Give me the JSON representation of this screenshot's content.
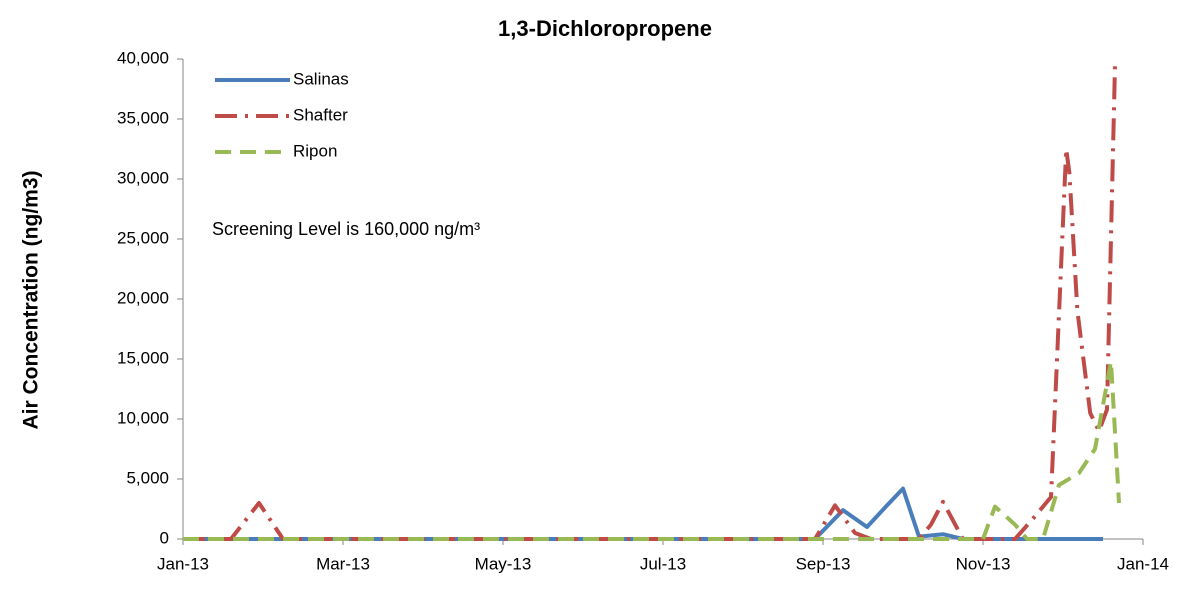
{
  "chart_data": {
    "type": "line",
    "title": "1,3-Dichloropropene",
    "y_label": "Air Concentration (ng/m3)",
    "annotation": "Screening Level is 160,000 ng/m³",
    "xlim": [
      0,
      12
    ],
    "xticks": [
      {
        "value": 0,
        "label": "Jan-13"
      },
      {
        "value": 2,
        "label": "Mar-13"
      },
      {
        "value": 4,
        "label": "May-13"
      },
      {
        "value": 6,
        "label": "Jul-13"
      },
      {
        "value": 8,
        "label": "Sep-13"
      },
      {
        "value": 10,
        "label": "Nov-13"
      },
      {
        "value": 12,
        "label": "Jan-14"
      }
    ],
    "ylim": [
      0,
      40000
    ],
    "yticks": [
      0,
      {
        "value": 5000,
        "label": "5,000"
      },
      {
        "value": 10000,
        "label": "10,000"
      },
      {
        "value": 15000,
        "label": "15,000"
      },
      {
        "value": 20000,
        "label": "20,000"
      },
      {
        "value": 25000,
        "label": "25,000"
      },
      {
        "value": 30000,
        "label": "30,000"
      },
      {
        "value": 35000,
        "label": "35,000"
      },
      {
        "value": 40000,
        "label": "40,000"
      }
    ],
    "series": [
      {
        "name": "Salinas",
        "color": "#4a7ebb",
        "dash": "solid",
        "x": [
          0,
          7.9,
          8.25,
          8.55,
          8.8,
          9.0,
          9.2,
          9.5,
          9.75,
          11.5
        ],
        "values": [
          0,
          0,
          2400,
          1000,
          2800,
          4200,
          200,
          400,
          0,
          0
        ]
      },
      {
        "name": "Shafter",
        "color": "#be4b48",
        "dash": "dashdot",
        "x": [
          0,
          0.6,
          0.95,
          1.25,
          7.9,
          8.15,
          8.4,
          8.6,
          9.2,
          9.35,
          9.5,
          9.75,
          10.4,
          10.6,
          10.85,
          11.04,
          11.08,
          11.18,
          11.34,
          11.45,
          11.55,
          11.65
        ],
        "values": [
          0,
          0,
          3000,
          0,
          0,
          2800,
          500,
          0,
          0,
          1200,
          3100,
          0,
          0,
          1500,
          3500,
          32500,
          30500,
          19000,
          10500,
          9000,
          10800,
          39500
        ]
      },
      {
        "name": "Ripon",
        "color": "#98b954",
        "dash": "dash",
        "x": [
          0,
          9.5,
          10.0,
          10.15,
          10.4,
          10.55,
          10.75,
          10.95,
          11.2,
          11.4,
          11.6,
          11.7
        ],
        "values": [
          0,
          0,
          0,
          2700,
          1200,
          0,
          0,
          4500,
          5500,
          7500,
          14800,
          3000
        ]
      }
    ]
  }
}
